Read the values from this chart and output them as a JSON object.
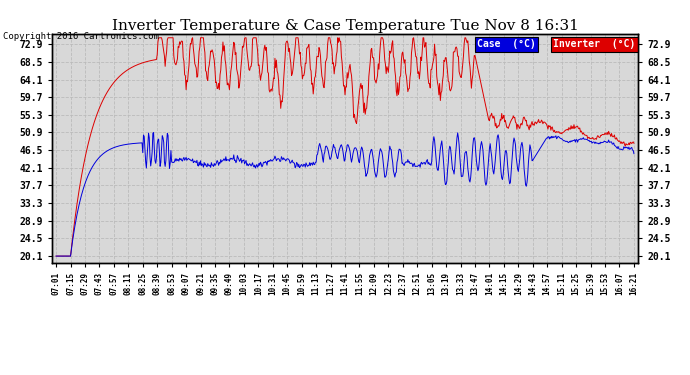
{
  "title": "Inverter Temperature & Case Temperature Tue Nov 8 16:31",
  "copyright": "Copyright 2016 Cartronics.com",
  "yticks": [
    20.1,
    24.5,
    28.9,
    33.3,
    37.7,
    42.1,
    46.5,
    50.9,
    55.3,
    59.7,
    64.1,
    68.5,
    72.9
  ],
  "ylim": [
    18.5,
    75.5
  ],
  "case_color": "#0000dd",
  "inverter_color": "#dd0000",
  "background_color": "#ffffff",
  "plot_bg_color": "#d8d8d8",
  "grid_color": "#bbbbbb",
  "legend_case_label": "Case  (°C)",
  "legend_inverter_label": "Inverter  (°C)",
  "xtick_labels": [
    "07:01",
    "07:15",
    "07:29",
    "07:43",
    "07:57",
    "08:11",
    "08:25",
    "08:39",
    "08:53",
    "09:07",
    "09:21",
    "09:35",
    "09:49",
    "10:03",
    "10:17",
    "10:31",
    "10:45",
    "10:59",
    "11:13",
    "11:27",
    "11:41",
    "11:55",
    "12:09",
    "12:23",
    "12:37",
    "12:51",
    "13:05",
    "13:19",
    "13:33",
    "13:47",
    "14:01",
    "14:15",
    "14:29",
    "14:43",
    "14:57",
    "15:11",
    "15:25",
    "15:39",
    "15:53",
    "16:07",
    "16:21"
  ]
}
